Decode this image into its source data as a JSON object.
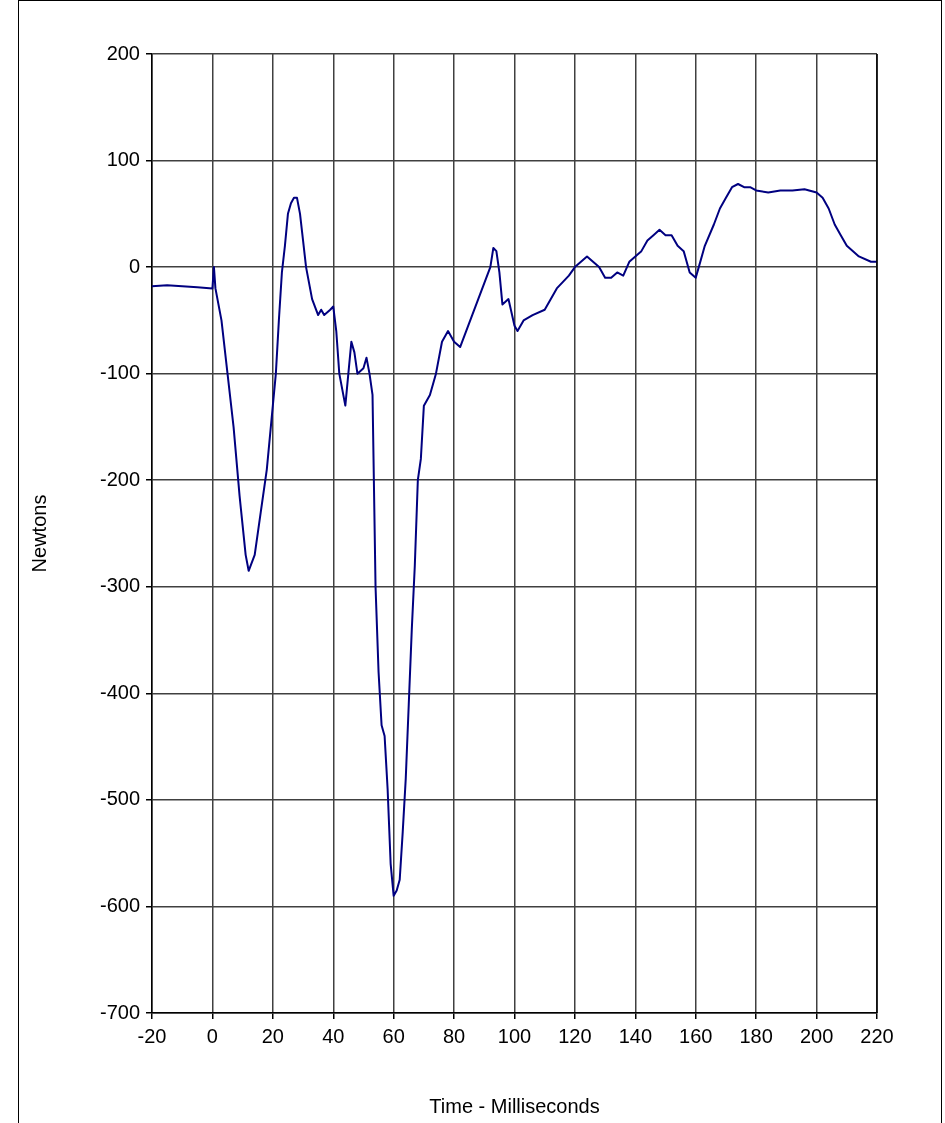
{
  "chart_data": {
    "type": "line",
    "xlabel": "Time - Milliseconds",
    "ylabel": "Newtons",
    "x": [
      -20,
      -15,
      -10,
      -5,
      0,
      0.5,
      1,
      3,
      5,
      7,
      9,
      11,
      12,
      14,
      16,
      18,
      20,
      21,
      22,
      23,
      24,
      25,
      26,
      27,
      28,
      29,
      30,
      31,
      32,
      33,
      35,
      36,
      37,
      39,
      40,
      41,
      42,
      43,
      44,
      45,
      46,
      47,
      48,
      50,
      51,
      52,
      53,
      54,
      55,
      56,
      57,
      58,
      59,
      60,
      61,
      62,
      63,
      64,
      65,
      66,
      67,
      68,
      69,
      70,
      72,
      74,
      76,
      78,
      80,
      82,
      84,
      86,
      88,
      90,
      92,
      93,
      94,
      95,
      96,
      98,
      100,
      101,
      103,
      106,
      110,
      114,
      118,
      120,
      122,
      124,
      126,
      128,
      130,
      132,
      134,
      136,
      138,
      140,
      142,
      144,
      146,
      148,
      150,
      152,
      154,
      156,
      158,
      160,
      161,
      163,
      166,
      168,
      170,
      172,
      174,
      176,
      178,
      180,
      184,
      188,
      192,
      196,
      200,
      202,
      204,
      206,
      208,
      210,
      214,
      218,
      220
    ],
    "series": [
      {
        "color": "#000080",
        "values": [
          -18,
          -17,
          -18,
          -19,
          -20,
          0,
          -20,
          -50,
          -100,
          -150,
          -215,
          -270,
          -285,
          -270,
          -230,
          -190,
          -130,
          -100,
          -50,
          -5,
          20,
          50,
          60,
          65,
          65,
          50,
          25,
          0,
          -15,
          -30,
          -45,
          -40,
          -45,
          -40,
          -37,
          -60,
          -100,
          -115,
          -130,
          -100,
          -70,
          -80,
          -100,
          -95,
          -85,
          -100,
          -120,
          -300,
          -380,
          -430,
          -440,
          -490,
          -560,
          -590,
          -585,
          -575,
          -530,
          -480,
          -410,
          -340,
          -280,
          -200,
          -180,
          -130,
          -120,
          -100,
          -70,
          -60,
          -70,
          -75,
          -60,
          -45,
          -30,
          -15,
          0,
          18,
          15,
          -5,
          -35,
          -30,
          -55,
          -60,
          -50,
          -45,
          -40,
          -20,
          -8,
          0,
          5,
          10,
          5,
          0,
          -10,
          -10,
          -5,
          -8,
          5,
          10,
          15,
          25,
          30,
          35,
          30,
          30,
          20,
          15,
          -5,
          -10,
          0,
          20,
          40,
          55,
          65,
          75,
          78,
          75,
          75,
          72,
          70,
          72,
          72,
          73,
          70,
          65,
          55,
          40,
          30,
          20,
          10,
          5,
          5
        ]
      }
    ],
    "xlim": [
      -20,
      220
    ],
    "xticks": [
      -20,
      0,
      20,
      40,
      60,
      80,
      100,
      120,
      140,
      160,
      180,
      200,
      220
    ],
    "ylim": [
      -700,
      200
    ],
    "yticks": [
      -700,
      -600,
      -500,
      -400,
      -300,
      -200,
      -100,
      0,
      100,
      200
    ],
    "grid": true,
    "legend": false,
    "marker": "none",
    "line_style": "solid"
  }
}
